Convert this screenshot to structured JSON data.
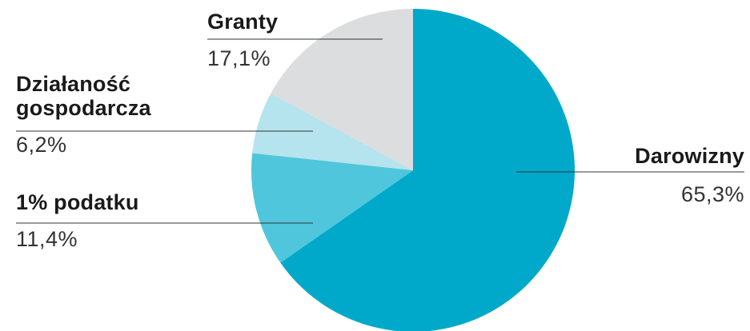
{
  "colors": {
    "darowizny": "#00a9c9",
    "podatek": "#4fc6dc",
    "dzialalnosc": "#b5e3ee",
    "granty": "#dcdddf",
    "leader": "#333333"
  },
  "chart_data": {
    "type": "pie",
    "title": "",
    "slices": [
      {
        "name": "Darowizny",
        "value": 65.3,
        "label": "65,3%",
        "color": "#00a9c9"
      },
      {
        "name": "1% podatku",
        "value": 11.4,
        "label": "11,4%",
        "color": "#4fc6dc"
      },
      {
        "name": "Działaność\ngospodarcza",
        "value": 6.2,
        "label": "6,2%",
        "color": "#b5e3ee"
      },
      {
        "name": "Granty",
        "value": 17.1,
        "label": "17,1%",
        "color": "#dcdddf"
      }
    ],
    "start": "top",
    "direction": "clockwise"
  }
}
